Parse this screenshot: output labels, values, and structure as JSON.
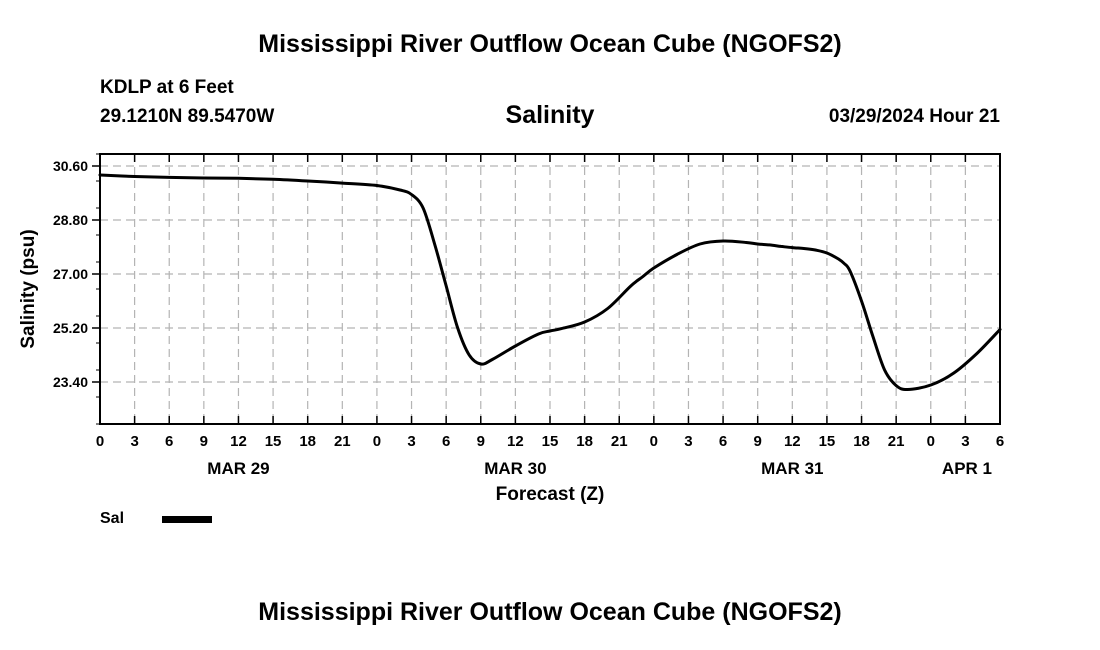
{
  "header": {
    "title": "Mississippi River Outflow Ocean Cube (NGOFS2)",
    "station": "KDLP at 6 Feet",
    "coords": "29.1210N  89.5470W",
    "subtitle": "Salinity",
    "timestamp": "03/29/2024 Hour 21"
  },
  "footer": {
    "title": "Mississippi River Outflow Ocean Cube (NGOFS2)"
  },
  "legend": {
    "label": "Sal"
  },
  "chart_data": {
    "type": "line",
    "title": "Salinity",
    "xlabel": "Forecast (Z)",
    "ylabel": "Salinity (psu)",
    "xlim": [
      0,
      78
    ],
    "ylim": [
      22.0,
      31.0
    ],
    "y_ticks": [
      "30.60",
      "28.80",
      "27.00",
      "25.20",
      "23.40"
    ],
    "y_tick_values": [
      30.6,
      28.8,
      27.0,
      25.2,
      23.4
    ],
    "x_ticks": [
      "0",
      "3",
      "6",
      "9",
      "12",
      "15",
      "18",
      "21",
      "0",
      "3",
      "6",
      "9",
      "12",
      "15",
      "18",
      "21",
      "0",
      "3",
      "6",
      "9",
      "12",
      "15",
      "18",
      "21",
      "0",
      "3",
      "6"
    ],
    "date_labels": [
      {
        "label": "MAR 29",
        "hour": 12
      },
      {
        "label": "MAR 30",
        "hour": 36
      },
      {
        "label": "MAR 31",
        "hour": 60
      },
      {
        "label": "APR 1",
        "hour": 78
      }
    ],
    "grid": true,
    "legend_position": "bottom-left",
    "color": "#000000",
    "series": [
      {
        "name": "Sal",
        "x": [
          0,
          3,
          6,
          9,
          12,
          15,
          18,
          21,
          24,
          26,
          27,
          28,
          29,
          30,
          31,
          32,
          33,
          34,
          36,
          38,
          39,
          40,
          42,
          44,
          46,
          47,
          48,
          50,
          52,
          54,
          56,
          57,
          58,
          59,
          60,
          61,
          62,
          63,
          64,
          64.5,
          65,
          66,
          67,
          68,
          69,
          70,
          72,
          74,
          76,
          78
        ],
        "y": [
          30.3,
          30.25,
          30.22,
          30.2,
          30.19,
          30.16,
          30.1,
          30.03,
          29.95,
          29.8,
          29.65,
          29.2,
          28.0,
          26.6,
          25.2,
          24.3,
          24.0,
          24.15,
          24.6,
          25.0,
          25.1,
          25.18,
          25.4,
          25.85,
          26.6,
          26.9,
          27.2,
          27.65,
          28.0,
          28.1,
          28.05,
          28.0,
          27.97,
          27.92,
          27.88,
          27.85,
          27.8,
          27.7,
          27.5,
          27.35,
          27.1,
          26.1,
          24.9,
          23.8,
          23.28,
          23.15,
          23.3,
          23.7,
          24.35,
          25.15
        ]
      }
    ]
  }
}
